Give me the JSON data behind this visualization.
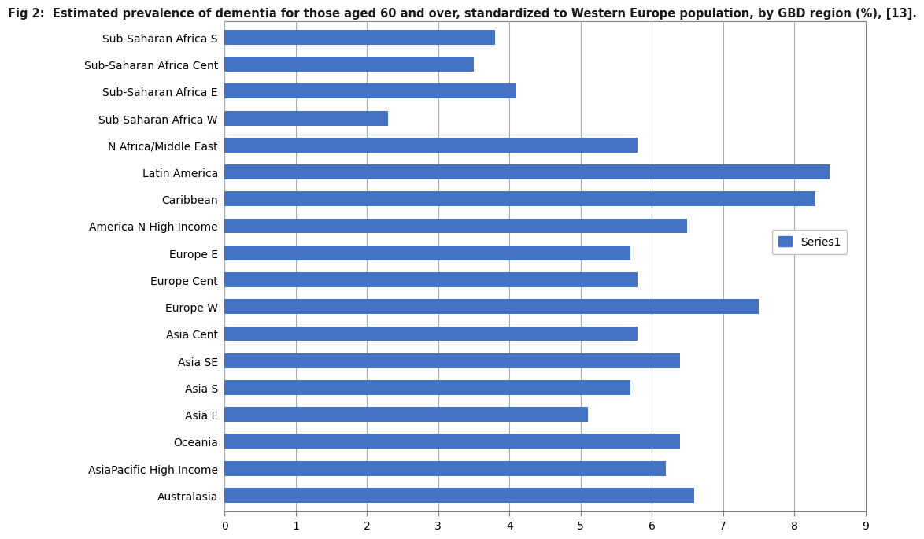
{
  "title": "Fig 2:  Estimated prevalence of dementia for those aged 60 and over, standardized to Western Europe population, by GBD region (%), [13].",
  "categories": [
    "Sub-Saharan Africa S",
    "Sub-Saharan Africa Cent",
    "Sub-Saharan Africa E",
    "Sub-Saharan Africa W",
    "N Africa/Middle East",
    "Latin America",
    "Caribbean",
    "America N High Income",
    "Europe E",
    "Europe Cent",
    "Europe W",
    "Asia Cent",
    "Asia SE",
    "Asia S",
    "Asia E",
    "Oceania",
    "AsiaPacific High Income",
    "Australasia"
  ],
  "values": [
    3.8,
    3.5,
    4.1,
    2.3,
    5.8,
    8.5,
    8.3,
    6.5,
    5.7,
    5.8,
    7.5,
    5.8,
    6.4,
    5.7,
    5.1,
    6.4,
    6.2,
    6.6
  ],
  "bar_color": "#4472C4",
  "legend_label": "Series1",
  "xlim": [
    0,
    9
  ],
  "xticks": [
    0,
    1,
    2,
    3,
    4,
    5,
    6,
    7,
    8,
    9
  ],
  "background_color": "#ffffff",
  "plot_background": "#ffffff",
  "grid_color": "#aaaaaa",
  "title_color": "#1a1a1a",
  "title_fontsize": 10.5,
  "tick_fontsize": 10,
  "bar_height": 0.55
}
